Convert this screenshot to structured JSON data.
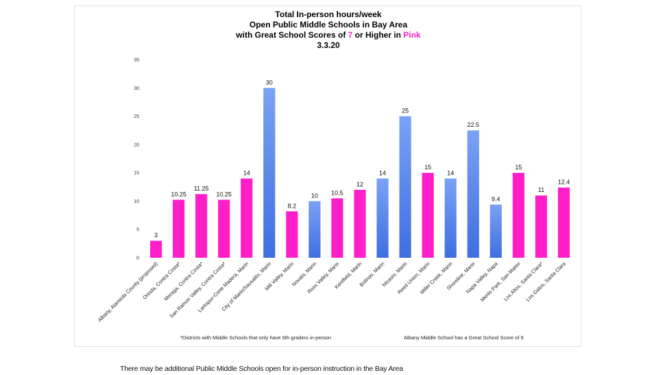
{
  "caption": "There may be additional Public Middle Schools open for in-person instruction in the Bay Area",
  "chart_data": {
    "type": "bar",
    "title_lines": [
      "Total In-person hours/week",
      "Open Public Middle Schools in Bay Area"
    ],
    "title_line3": {
      "before": "with Great School Scores of ",
      "highlight_number": "7",
      "middle": " or Higher in ",
      "highlight_word": "Pink"
    },
    "title_date": "3.3.20",
    "ylim": [
      0,
      35
    ],
    "yticks": [
      0,
      5,
      10,
      15,
      20,
      25,
      30,
      35
    ],
    "categories": [
      "Albany, Alameda County (proposed)",
      "Orinda, Contra Costa*",
      "Moraga, Contra Costa*",
      "San Ramon Valley, Contra Costa*",
      "Larkspur-Corte Madera, Marin",
      "City of Marin/Sausalito, Marin",
      "Mill Valley, Marin",
      "Novato, Marin",
      "Ross Valley, Marin",
      "Kentfield, Marin",
      "Bolinas, Marin",
      "Nicasio, Marin",
      "Reed Union, Marin",
      "Miller Creek, Marin",
      "Shoreline, Marin",
      "Napa Valley, Napa",
      "Menlo Park, San Mateo",
      "Los Altos, Santa Clara*",
      "Los Gatos, Santa Clara"
    ],
    "values": [
      3,
      10.25,
      11.25,
      10.25,
      14,
      30,
      8.2,
      10,
      10.5,
      12,
      14,
      25,
      15,
      14,
      22.5,
      9.4,
      15,
      11,
      12.4
    ],
    "value_labels": [
      "3",
      "10.25",
      "11.25",
      "10.25",
      "14",
      "30",
      "8.2",
      "10",
      "10.5",
      "12",
      "14",
      "25",
      "15",
      "14",
      "22.5",
      "9.4",
      "15",
      "11",
      "12.4"
    ],
    "score_7_or_higher": [
      true,
      true,
      true,
      true,
      true,
      false,
      true,
      false,
      true,
      true,
      false,
      false,
      true,
      false,
      false,
      false,
      true,
      true,
      true
    ],
    "colors": {
      "pink": "#ff1fc8",
      "blue_top": "#7aa2f5",
      "blue_bottom": "#3f6ee0",
      "highlight": "#ff1fc8"
    },
    "notes": {
      "left": "*Districts with Middle Schools that only have 6th graders in-person",
      "right": "Albany Middle School has a Great School Score of 9"
    },
    "grid": false,
    "legend": "none"
  }
}
